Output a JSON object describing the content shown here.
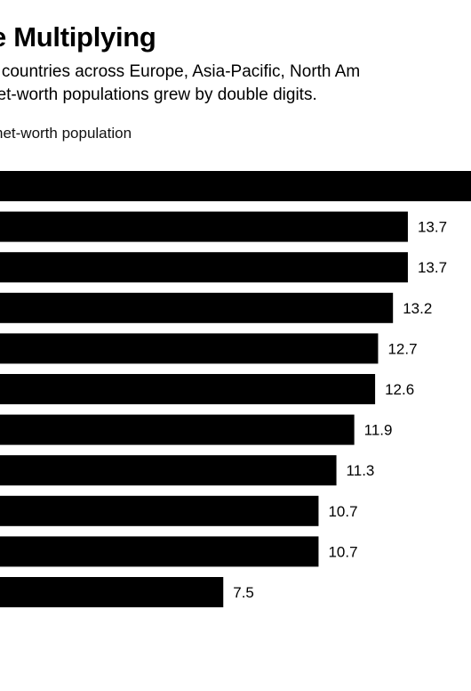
{
  "header": {
    "title": "e Multiplying",
    "subtitle_line1": "e countries across Europe, Asia-Pacific, North Am",
    "subtitle_line2": "net-worth populations grew by double digits."
  },
  "chart_data": {
    "type": "bar",
    "orientation": "horizontal",
    "ylabel": "net-worth population",
    "values": [
      null,
      13.7,
      13.7,
      13.2,
      12.7,
      12.6,
      11.9,
      11.3,
      10.7,
      10.7,
      7.5
    ],
    "value_labels": [
      "",
      "13.7",
      "13.7",
      "13.2",
      "12.7",
      "12.6",
      "11.9",
      "11.3",
      "10.7",
      "10.7",
      "7.5"
    ],
    "bar_color": "#000000"
  }
}
